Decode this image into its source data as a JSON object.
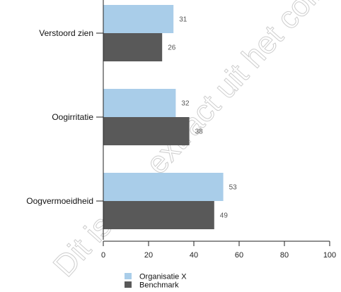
{
  "chart_data": {
    "type": "bar",
    "orientation": "horizontal",
    "categories": [
      "Verstoord zien",
      "Oogirritatie",
      "Oogvermoeidheid"
    ],
    "series": [
      {
        "name": "Organisatie X",
        "values": [
          31,
          32,
          53
        ],
        "color": "#a9cde9"
      },
      {
        "name": "Benchmark",
        "values": [
          26,
          38,
          49
        ],
        "color": "#595959"
      }
    ],
    "xlim": [
      0,
      100
    ],
    "xticks": [
      "0",
      "20",
      "40",
      "60",
      "80",
      "100"
    ],
    "grid": false,
    "legend": "bottom",
    "title": "",
    "xlabel": "",
    "ylabel": ""
  },
  "watermark": "Dit is een extract uit het collectieve"
}
